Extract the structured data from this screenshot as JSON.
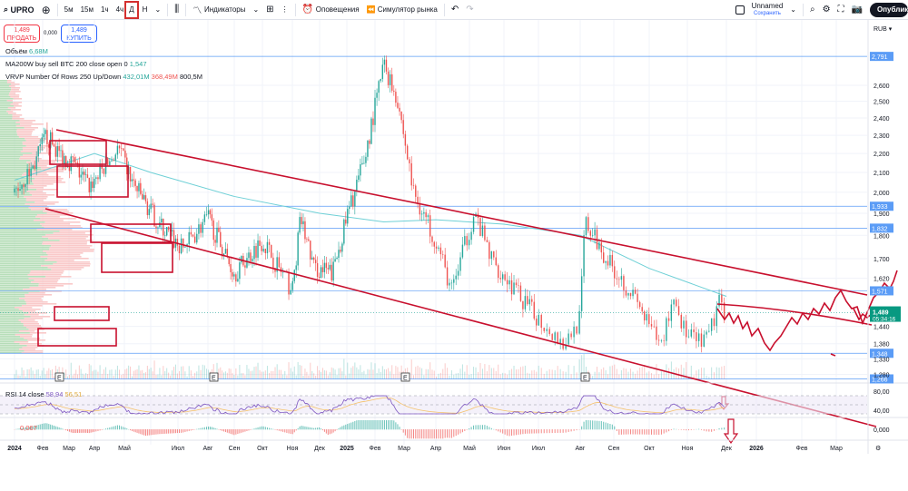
{
  "toolbar": {
    "symbol": "UPRO",
    "timeframes": [
      "5м",
      "15м",
      "1ч",
      "4ч",
      "Д",
      "Н"
    ],
    "active_timeframe": "Д",
    "indicators": "Индикаторы",
    "alerts": "Оповещения",
    "replay": "Симулятор рынка",
    "layout_name": "Unnamed",
    "save": "Сохранить",
    "publish": "Опубликовать"
  },
  "trade": {
    "sell_price": "1,489",
    "sell_label": "ПРОДАТЬ",
    "spread": "0,000",
    "buy_price": "1,489",
    "buy_label": "КУПИТЬ"
  },
  "legend": {
    "volume_label": "Объём",
    "volume_value": "6,68M",
    "ma_label": "MA200W buy sell BTC 200 close open 0",
    "ma_value": "1,547",
    "vrvp_label": "VRVP Number Of Rows 250 Up/Down",
    "vrvp_up": "432,01M",
    "vrvp_down": "368,49M",
    "vrvp_total": "800,5M",
    "rsi_label": "RSI 14 close",
    "rsi_value": "58,94",
    "rsi_ma": "56,51",
    "macd_value": "0,067"
  },
  "currency": "RUB",
  "colors": {
    "up": "#26a69a",
    "down": "#ef5350",
    "ma": "#6fd0d6",
    "drawing": "#c8102e",
    "level": "#5b9cf6",
    "rsi": "#7e57c2",
    "rsi_ma": "#f5c26b"
  },
  "chart_data": {
    "type": "candlestick",
    "scale": "log",
    "price_ticks": [
      "2,600",
      "2,500",
      "2,400",
      "2,300",
      "2,200",
      "2,100",
      "2,000",
      "1,900",
      "1,800",
      "1,700",
      "1,620",
      "1,440",
      "1,380",
      "1,330",
      "1,280"
    ],
    "time_ticks": [
      "2024",
      "Фев",
      "Мар",
      "Апр",
      "Май",
      "Июл",
      "Авг",
      "Сен",
      "Окт",
      "Ноя",
      "Дек",
      "2025",
      "Фев",
      "Мар",
      "Апр",
      "Май",
      "Июн",
      "Июл",
      "Авг",
      "Сен",
      "Окт",
      "Ноя",
      "Дек",
      "2026",
      "Фев",
      "Мар"
    ],
    "levels": [
      "2,791",
      "1,933",
      "1,832",
      "1,571",
      "1,348",
      "1,266"
    ],
    "last_price": "1,489",
    "countdown": "05:34:16",
    "rsi_ticks": [
      "80,00",
      "40,00"
    ],
    "macd_tick": "0,000",
    "close_path": [
      [
        "2024-01-01",
        2.0
      ],
      [
        "2024-01-20",
        2.12
      ],
      [
        "2024-02-05",
        2.3
      ],
      [
        "2024-02-20",
        2.2
      ],
      [
        "2024-03-05",
        2.15
      ],
      [
        "2024-03-25",
        2.03
      ],
      [
        "2024-04-10",
        2.12
      ],
      [
        "2024-04-25",
        2.22
      ],
      [
        "2024-05-10",
        2.05
      ],
      [
        "2024-06-10",
        1.85
      ],
      [
        "2024-07-05",
        1.74
      ],
      [
        "2024-08-01",
        1.88
      ],
      [
        "2024-09-01",
        1.64
      ],
      [
        "2024-10-01",
        1.78
      ],
      [
        "2024-11-01",
        1.57
      ],
      [
        "2024-11-10",
        1.88
      ],
      [
        "2024-11-25",
        1.66
      ],
      [
        "2024-12-15",
        1.64
      ],
      [
        "2024-12-31",
        1.88
      ],
      [
        "2025-01-20",
        2.17
      ],
      [
        "2025-02-10",
        2.74
      ],
      [
        "2025-02-25",
        2.5
      ],
      [
        "2025-03-10",
        2.0
      ],
      [
        "2025-04-01",
        1.78
      ],
      [
        "2025-04-15",
        1.57
      ],
      [
        "2025-05-05",
        1.9
      ],
      [
        "2025-05-20",
        1.7
      ],
      [
        "2025-06-20",
        1.52
      ],
      [
        "2025-07-20",
        1.38
      ],
      [
        "2025-07-31",
        1.47
      ],
      [
        "2025-08-05",
        1.86
      ],
      [
        "2025-08-25",
        1.7
      ],
      [
        "2025-09-15",
        1.57
      ],
      [
        "2025-10-10",
        1.37
      ],
      [
        "2025-10-20",
        1.55
      ],
      [
        "2025-11-01",
        1.4
      ],
      [
        "2025-11-15",
        1.38
      ],
      [
        "2025-11-25",
        1.52
      ],
      [
        "2025-12-01",
        1.49
      ]
    ],
    "ma_path": [
      [
        "2024-01-01",
        2.06
      ],
      [
        "2024-04-01",
        2.2
      ],
      [
        "2024-06-01",
        2.1
      ],
      [
        "2024-09-01",
        1.98
      ],
      [
        "2024-12-01",
        1.9
      ],
      [
        "2025-02-10",
        1.86
      ],
      [
        "2025-04-01",
        1.87
      ],
      [
        "2025-06-01",
        1.85
      ],
      [
        "2025-08-01",
        1.8
      ],
      [
        "2025-10-01",
        1.66
      ],
      [
        "2025-12-01",
        1.55
      ]
    ]
  }
}
